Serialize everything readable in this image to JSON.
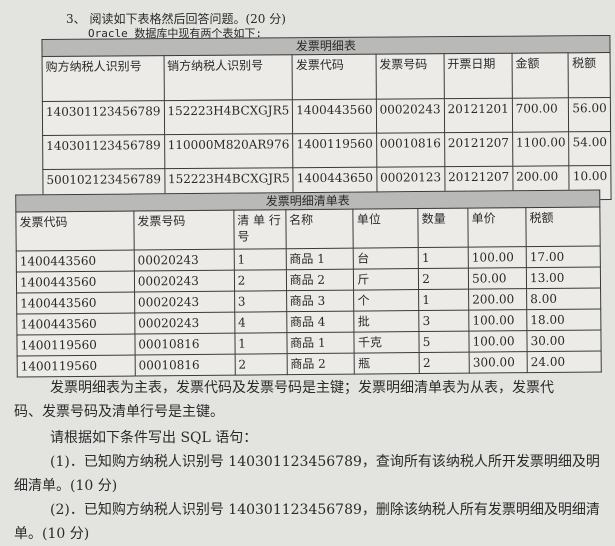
{
  "question": {
    "title": "3、 阅读如下表格然后回答问题。(20 分)",
    "intro": "Oracle 数据库中现有两个表如下:"
  },
  "table1": {
    "caption": "发票明细表",
    "headers": [
      "购方纳税人识别号",
      "销方纳税人识别号",
      "发票代码",
      "发票号码",
      "开票日期",
      "金额",
      "税额"
    ],
    "rows": [
      [
        "140301123456789",
        "152223H4BCXGJR5",
        "1400443560",
        "00020243",
        "20121201",
        "700.00",
        "56.00"
      ],
      [
        "140301123456789",
        "110000M820AR976",
        "1400119560",
        "00010816",
        "20121207",
        "1100.00",
        "54.00"
      ],
      [
        "500102123456789",
        "152223H4BCXGJR5",
        "1400443650",
        "00020123",
        "20121207",
        "200.00",
        "10.00"
      ]
    ]
  },
  "table2": {
    "caption": "发票明细清单表",
    "headers": [
      "发票代码",
      "发票号码",
      "清 单 行号",
      "名称",
      "单位",
      "数量",
      "单价",
      "税额"
    ],
    "rows": [
      [
        "1400443560",
        "00020243",
        "1",
        "商品 1",
        "台",
        "1",
        "100.00",
        "17.00"
      ],
      [
        "1400443560",
        "00020243",
        "2",
        "商品 2",
        "斤",
        "2",
        "50.00",
        "13.00"
      ],
      [
        "1400443560",
        "00020243",
        "3",
        "商品 3",
        "个",
        "1",
        "200.00",
        "8.00"
      ],
      [
        "1400443560",
        "00020243",
        "4",
        "商品 4",
        "批",
        "3",
        "100.00",
        "18.00"
      ],
      [
        "1400119560",
        "00010816",
        "1",
        "商品 1",
        "千克",
        "5",
        "100.00",
        "30.00"
      ],
      [
        "1400119560",
        "00010816",
        "2",
        "商品 2",
        "瓶",
        "2",
        "300.00",
        "24.00"
      ]
    ]
  },
  "body": {
    "p1": "发票明细表为主表，发票代码及发票号码是主键；发票明细清单表为从表，发票代码、发票号码及清单行号是主键。",
    "p2": "请根据如下条件写出 SQL 语句：",
    "p3": "(1)．已知购方纳税人识别号 140301123456789，查询所有该纳税人所开发票明细及明细清单。(10 分)",
    "p4": "(2)．已知购方纳税人识别号 140301123456789，删除该纳税人所有发票明细及明细清单。(10 分)"
  }
}
